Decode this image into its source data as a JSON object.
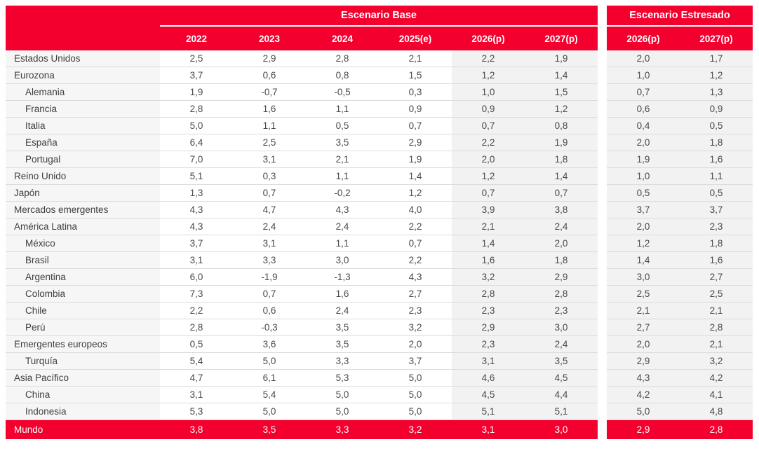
{
  "colors": {
    "accent_red": "#f4002f",
    "label_column_bg": "#f6f6f6",
    "shaded_column_bg": "#f2f2f2",
    "row_border": "#dcdcdc",
    "header_text": "#ffffff",
    "body_text": "#434343"
  },
  "header": {
    "base_scenario_label": "Escenario Base",
    "stressed_scenario_label": "Escenario Estresado",
    "base_years": [
      "2022",
      "2023",
      "2024",
      "2025(e)",
      "2026(p)",
      "2027(p)"
    ],
    "stressed_years": [
      "2026(p)",
      "2027(p)"
    ]
  },
  "chart_data": {
    "type": "table",
    "title": "",
    "column_groups": [
      {
        "label": "Escenario Base",
        "columns": [
          "2022",
          "2023",
          "2024",
          "2025(e)",
          "2026(p)",
          "2027(p)"
        ]
      },
      {
        "label": "Escenario Estresado",
        "columns": [
          "2026(p)",
          "2027(p)"
        ]
      }
    ],
    "decimal_separator": ",",
    "rows": [
      {
        "label": "Estados Unidos",
        "indent": false,
        "base": [
          2.5,
          2.9,
          2.8,
          2.1,
          2.2,
          1.9
        ],
        "stressed": [
          2.0,
          1.7
        ]
      },
      {
        "label": "Eurozona",
        "indent": false,
        "base": [
          3.7,
          0.6,
          0.8,
          1.5,
          1.2,
          1.4
        ],
        "stressed": [
          1.0,
          1.2
        ]
      },
      {
        "label": "Alemania",
        "indent": true,
        "base": [
          1.9,
          -0.7,
          -0.5,
          0.3,
          1.0,
          1.5
        ],
        "stressed": [
          0.7,
          1.3
        ]
      },
      {
        "label": "Francia",
        "indent": true,
        "base": [
          2.8,
          1.6,
          1.1,
          0.9,
          0.9,
          1.2
        ],
        "stressed": [
          0.6,
          0.9
        ]
      },
      {
        "label": "Italia",
        "indent": true,
        "base": [
          5.0,
          1.1,
          0.5,
          0.7,
          0.7,
          0.8
        ],
        "stressed": [
          0.4,
          0.5
        ]
      },
      {
        "label": "España",
        "indent": true,
        "base": [
          6.4,
          2.5,
          3.5,
          2.9,
          2.2,
          1.9
        ],
        "stressed": [
          2.0,
          1.8
        ]
      },
      {
        "label": "Portugal",
        "indent": true,
        "base": [
          7.0,
          3.1,
          2.1,
          1.9,
          2.0,
          1.8
        ],
        "stressed": [
          1.9,
          1.6
        ]
      },
      {
        "label": "Reino Unido",
        "indent": false,
        "base": [
          5.1,
          0.3,
          1.1,
          1.4,
          1.2,
          1.4
        ],
        "stressed": [
          1.0,
          1.1
        ]
      },
      {
        "label": "Japón",
        "indent": false,
        "base": [
          1.3,
          0.7,
          -0.2,
          1.2,
          0.7,
          0.7
        ],
        "stressed": [
          0.5,
          0.5
        ]
      },
      {
        "label": "Mercados emergentes",
        "indent": false,
        "base": [
          4.3,
          4.7,
          4.3,
          4.0,
          3.9,
          3.8
        ],
        "stressed": [
          3.7,
          3.7
        ]
      },
      {
        "label": "América Latina",
        "indent": false,
        "base": [
          4.3,
          2.4,
          2.4,
          2.2,
          2.1,
          2.4
        ],
        "stressed": [
          2.0,
          2.3
        ]
      },
      {
        "label": "México",
        "indent": true,
        "base": [
          3.7,
          3.1,
          1.1,
          0.7,
          1.4,
          2.0
        ],
        "stressed": [
          1.2,
          1.8
        ]
      },
      {
        "label": "Brasil",
        "indent": true,
        "base": [
          3.1,
          3.3,
          3.0,
          2.2,
          1.6,
          1.8
        ],
        "stressed": [
          1.4,
          1.6
        ]
      },
      {
        "label": "Argentina",
        "indent": true,
        "base": [
          6.0,
          -1.9,
          -1.3,
          4.3,
          3.2,
          2.9
        ],
        "stressed": [
          3.0,
          2.7
        ]
      },
      {
        "label": "Colombia",
        "indent": true,
        "base": [
          7.3,
          0.7,
          1.6,
          2.7,
          2.8,
          2.8
        ],
        "stressed": [
          2.5,
          2.5
        ]
      },
      {
        "label": "Chile",
        "indent": true,
        "base": [
          2.2,
          0.6,
          2.4,
          2.3,
          2.3,
          2.3
        ],
        "stressed": [
          2.1,
          2.1
        ]
      },
      {
        "label": "Perú",
        "indent": true,
        "base": [
          2.8,
          -0.3,
          3.5,
          3.2,
          2.9,
          3.0
        ],
        "stressed": [
          2.7,
          2.8
        ]
      },
      {
        "label": "Emergentes europeos",
        "indent": false,
        "base": [
          0.5,
          3.6,
          3.5,
          2.0,
          2.3,
          2.4
        ],
        "stressed": [
          2.0,
          2.1
        ]
      },
      {
        "label": "Turquía",
        "indent": true,
        "base": [
          5.4,
          5.0,
          3.3,
          3.7,
          3.1,
          3.5
        ],
        "stressed": [
          2.9,
          3.2
        ]
      },
      {
        "label": "Asia Pacífico",
        "indent": false,
        "base": [
          4.7,
          6.1,
          5.3,
          5.0,
          4.6,
          4.5
        ],
        "stressed": [
          4.3,
          4.2
        ]
      },
      {
        "label": "China",
        "indent": true,
        "base": [
          3.1,
          5.4,
          5.0,
          5.0,
          4.5,
          4.4
        ],
        "stressed": [
          4.2,
          4.1
        ]
      },
      {
        "label": "Indonesia",
        "indent": true,
        "base": [
          5.3,
          5.0,
          5.0,
          5.0,
          5.1,
          5.1
        ],
        "stressed": [
          5.0,
          4.8
        ]
      }
    ],
    "total_row": {
      "label": "Mundo",
      "base": [
        3.8,
        3.5,
        3.3,
        3.2,
        3.1,
        3.0
      ],
      "stressed": [
        2.9,
        2.8
      ]
    }
  }
}
